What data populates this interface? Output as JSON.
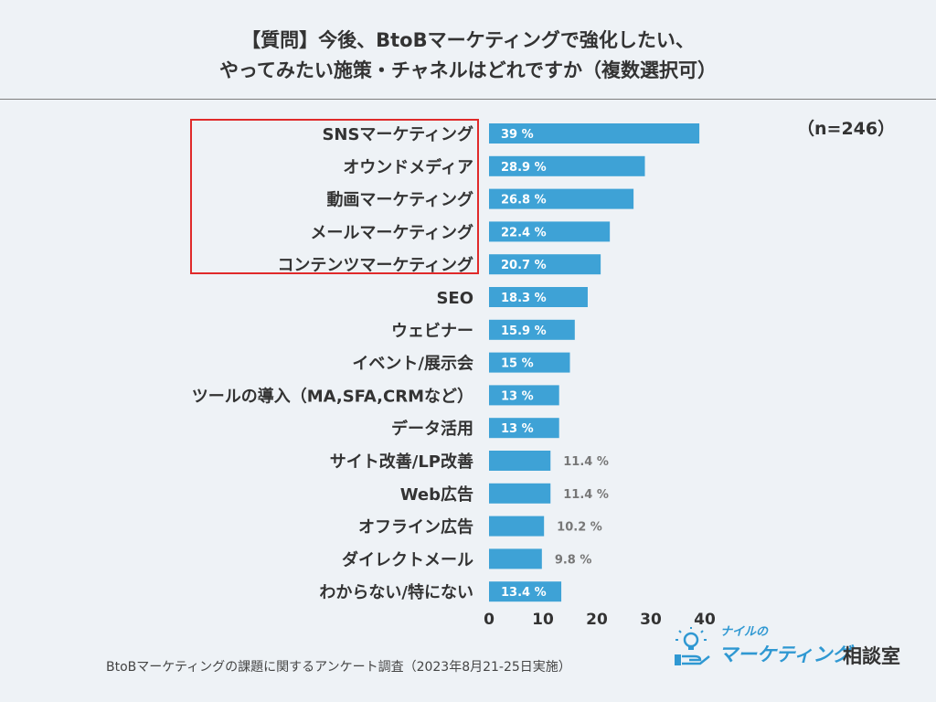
{
  "header": {
    "title_line1": "【質問】今後、BtoBマーケティングで強化したい、",
    "title_line2": "やってみたい施策・チャネルはどれですか（複数選択可）"
  },
  "sample_size": "（n=246）",
  "footer": {
    "source": "BtoBマーケティングの課題に関するアンケート調査（2023年8月21-25日実施）"
  },
  "logo": {
    "small_text": "ナイルの",
    "main_text": "マーケティング",
    "sub_text": "相談室",
    "icon": "lightbulb-hand-icon"
  },
  "colors": {
    "bar": "#3ea2d6",
    "highlight_border": "#e02a2a",
    "background": "#eef2f6",
    "label_inside": "#ffffff",
    "label_outside": "#777777"
  },
  "chart_data": {
    "type": "bar",
    "orientation": "horizontal",
    "unit": "%",
    "categories": [
      "SNSマーケティング",
      "オウンドメディア",
      "動画マーケティング",
      "メールマーケティング",
      "コンテンツマーケティング",
      "SEO",
      "ウェビナー",
      "イベント/展示会",
      "ツールの導入（MA,SFA,CRMなど）",
      "データ活用",
      "サイト改善/LP改善",
      "Web広告",
      "オフライン広告",
      "ダイレクトメール",
      "わからない/特にない"
    ],
    "values": [
      39,
      28.9,
      26.8,
      22.4,
      20.7,
      18.3,
      15.9,
      15,
      13,
      13,
      11.4,
      11.4,
      10.2,
      9.8,
      13.4
    ],
    "value_labels": [
      "39 %",
      "28.9 %",
      "26.8 %",
      "22.4 %",
      "20.7 %",
      "18.3 %",
      "15.9 %",
      "15 %",
      "13 %",
      "13 %",
      "11.4 %",
      "11.4 %",
      "10.2 %",
      "9.8 %",
      "13.4 %"
    ],
    "label_outside": [
      false,
      false,
      false,
      false,
      false,
      false,
      false,
      false,
      false,
      false,
      true,
      true,
      true,
      true,
      false
    ],
    "highlighted": [
      true,
      true,
      true,
      true,
      true,
      false,
      false,
      false,
      false,
      false,
      false,
      false,
      false,
      false,
      false
    ],
    "x_ticks": [
      "0",
      "10",
      "20",
      "30",
      "40"
    ],
    "xlim": [
      0,
      40
    ]
  }
}
